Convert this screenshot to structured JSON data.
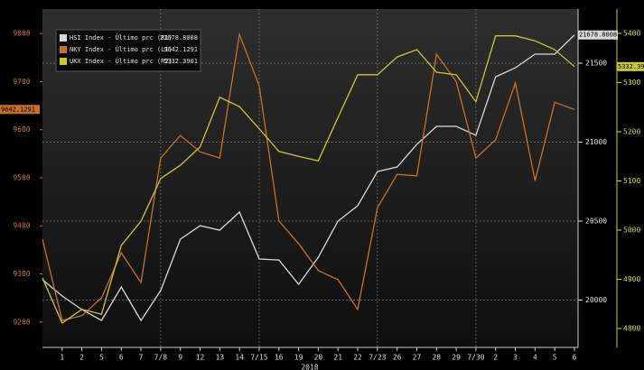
{
  "chart_data": {
    "type": "line",
    "x_label": "2018",
    "categories": [
      null,
      "1",
      "2",
      "5",
      "6",
      "7",
      "7/8",
      "9",
      "12",
      "13",
      "14",
      "7/15",
      "16",
      "19",
      "20",
      "21",
      "22",
      "7/23",
      "26",
      "27",
      "28",
      "29",
      "7/30",
      "2",
      "3",
      "4",
      "5",
      "6"
    ],
    "ylim": [
      9147,
      9851
    ],
    "yticks": [
      9200,
      9300,
      9400,
      9500,
      9600,
      9700,
      9800
    ],
    "ycolor": "#d0742c",
    "y2lim": [
      19700,
      21843
    ],
    "y2ticks": [
      20000,
      20500,
      21000,
      21500
    ],
    "y2color": "#e0e0e0",
    "y3lim": [
      4761.5,
      5449.5
    ],
    "y3ticks": [
      4800,
      4900,
      5000,
      5100,
      5200,
      5300,
      5400
    ],
    "y3color": "#d6d63a",
    "grid": true,
    "series": [
      {
        "name": "HSI Index - Último prc (R1)",
        "legend_value": "21678.8008",
        "axis_label": "21678.8008",
        "axis": "y2",
        "color": "#d9d9d9",
        "values": [
          20129,
          20026,
          19940,
          19871,
          20083,
          19871,
          20060,
          20386,
          20471,
          20443,
          20557,
          20260,
          20254,
          20100,
          20271,
          20500,
          20597,
          20814,
          20843,
          20986,
          21100,
          21100,
          21043,
          21414,
          21471,
          21557,
          21557,
          21678.8008
        ]
      },
      {
        "name": "NKY Index - Último prc (L1)",
        "legend_value": "9642.1291",
        "axis_label": "9642.1291",
        "axis": "y",
        "color": "#c8702a",
        "values": [
          9372,
          9203,
          9213,
          9250,
          9344,
          9282,
          9541,
          9588,
          9554,
          9541,
          9798,
          9691,
          9410,
          9363,
          9307,
          9288,
          9226,
          9438,
          9507,
          9504,
          9757,
          9700,
          9541,
          9579,
          9697,
          9494,
          9657,
          9642.1291
        ]
      },
      {
        "name": "UKX Index - Último prc (R2)",
        "legend_value": "5332.3901",
        "axis_label": "5332.39",
        "axis": "y3",
        "color": "#c8c830",
        "values": [
          4903,
          4811,
          4839,
          4829,
          4969,
          5018,
          5105,
          5132,
          5169,
          5270,
          5251,
          5206,
          5160,
          5150,
          5141,
          5229,
          5316,
          5316,
          5352,
          5367,
          5321,
          5316,
          5261,
          5395,
          5395,
          5385,
          5367,
          5332.3901
        ]
      }
    ]
  }
}
